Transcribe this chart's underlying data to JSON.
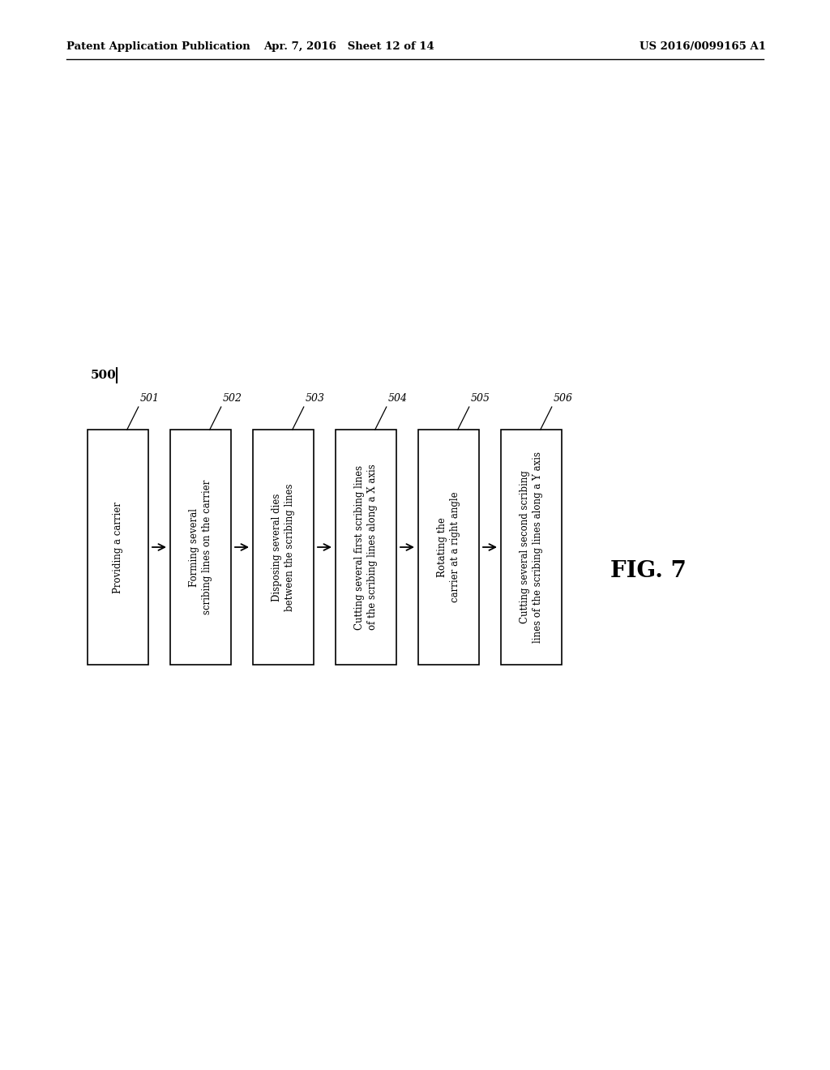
{
  "header_left": "Patent Application Publication",
  "header_mid": "Apr. 7, 2016   Sheet 12 of 14",
  "header_right": "US 2016/0099165 A1",
  "figure_label": "FIG. 7",
  "flow_label": "500",
  "background_color": "#ffffff",
  "boxes": [
    {
      "id": "501",
      "text": "Providing a carrier"
    },
    {
      "id": "502",
      "text": "Forming several\nscribing lines on the carrier"
    },
    {
      "id": "503",
      "text": "Disposing several dies\nbetween the scribing lines"
    },
    {
      "id": "504",
      "text": "Cutting several first scribing lines\nof the scribing lines along a X axis"
    },
    {
      "id": "505",
      "text": "Rotating the\ncarrier at a right angle"
    },
    {
      "id": "506",
      "text": "Cutting several second scribing\nlines of the scribing lines along a Y axis"
    }
  ],
  "header_fontsize": 9.5,
  "label_fontsize": 9,
  "text_fontsize": 8.5,
  "fig_label_fontsize": 20,
  "flow_label_fontsize": 11
}
